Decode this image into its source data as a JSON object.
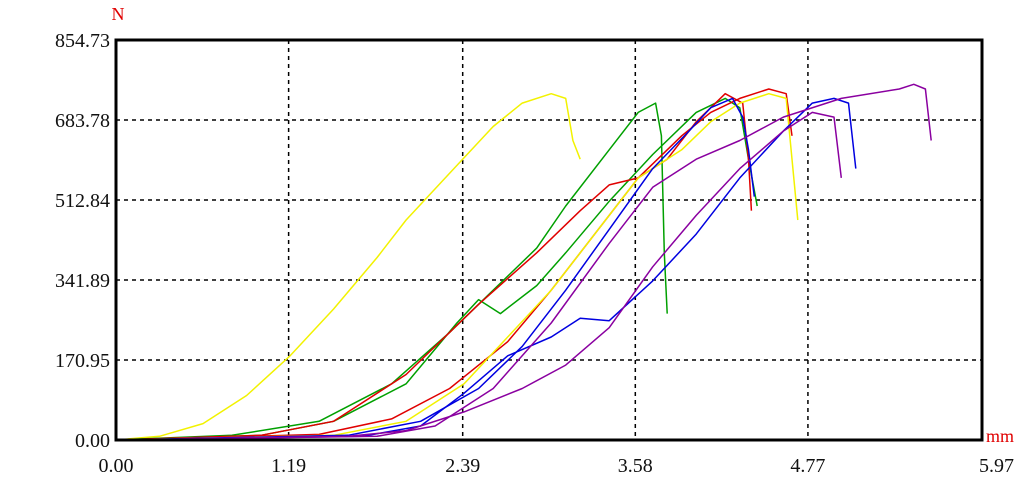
{
  "chart_data": {
    "type": "line",
    "ylabel": "N",
    "xlabel": "mm",
    "xlim": [
      0,
      5.97
    ],
    "ylim": [
      0,
      854.73
    ],
    "xticks": [
      "0.00",
      "1.19",
      "2.39",
      "3.58",
      "4.77",
      "5.97"
    ],
    "yticks": [
      "0.00",
      "170.95",
      "341.89",
      "512.84",
      "683.78",
      "854.73"
    ],
    "grid": "dashed",
    "legend": "none",
    "series": [
      {
        "color": "#f2f200",
        "points": [
          [
            0.0,
            0
          ],
          [
            0.3,
            8
          ],
          [
            0.6,
            35
          ],
          [
            0.9,
            95
          ],
          [
            1.2,
            180
          ],
          [
            1.5,
            280
          ],
          [
            1.8,
            390
          ],
          [
            2.0,
            470
          ],
          [
            2.3,
            570
          ],
          [
            2.6,
            670
          ],
          [
            2.8,
            720
          ],
          [
            3.0,
            740
          ],
          [
            3.1,
            730
          ],
          [
            3.15,
            640
          ],
          [
            3.2,
            600
          ]
        ]
      },
      {
        "color": "#00a000",
        "points": [
          [
            0.0,
            0
          ],
          [
            0.8,
            10
          ],
          [
            1.4,
            40
          ],
          [
            1.9,
            120
          ],
          [
            2.3,
            230
          ],
          [
            2.6,
            320
          ],
          [
            2.9,
            410
          ],
          [
            3.1,
            500
          ],
          [
            3.4,
            620
          ],
          [
            3.6,
            700
          ],
          [
            3.72,
            720
          ],
          [
            3.76,
            650
          ],
          [
            3.78,
            400
          ],
          [
            3.8,
            270
          ]
        ]
      },
      {
        "color": "#00a000",
        "points": [
          [
            0.0,
            0
          ],
          [
            1.0,
            10
          ],
          [
            1.5,
            40
          ],
          [
            2.0,
            120
          ],
          [
            2.35,
            250
          ],
          [
            2.5,
            300
          ],
          [
            2.65,
            270
          ],
          [
            2.9,
            330
          ],
          [
            3.1,
            400
          ],
          [
            3.4,
            510
          ],
          [
            3.7,
            610
          ],
          [
            4.0,
            700
          ],
          [
            4.2,
            730
          ],
          [
            4.3,
            710
          ],
          [
            4.36,
            600
          ],
          [
            4.42,
            500
          ]
        ]
      },
      {
        "color": "#e00000",
        "points": [
          [
            0.0,
            0
          ],
          [
            1.0,
            10
          ],
          [
            1.5,
            40
          ],
          [
            2.0,
            140
          ],
          [
            2.5,
            290
          ],
          [
            2.9,
            400
          ],
          [
            3.2,
            490
          ],
          [
            3.4,
            545
          ],
          [
            3.6,
            560
          ],
          [
            3.8,
            600
          ],
          [
            4.0,
            680
          ],
          [
            4.2,
            740
          ],
          [
            4.32,
            720
          ],
          [
            4.36,
            600
          ],
          [
            4.38,
            490
          ]
        ]
      },
      {
        "color": "#e00000",
        "points": [
          [
            0.0,
            0
          ],
          [
            1.4,
            12
          ],
          [
            1.9,
            45
          ],
          [
            2.3,
            110
          ],
          [
            2.7,
            210
          ],
          [
            3.0,
            320
          ],
          [
            3.3,
            440
          ],
          [
            3.6,
            560
          ],
          [
            3.9,
            650
          ],
          [
            4.1,
            700
          ],
          [
            4.3,
            730
          ],
          [
            4.5,
            750
          ],
          [
            4.62,
            740
          ],
          [
            4.66,
            650
          ]
        ]
      },
      {
        "color": "#f2f200",
        "points": [
          [
            0.0,
            0
          ],
          [
            1.5,
            10
          ],
          [
            2.0,
            40
          ],
          [
            2.4,
            120
          ],
          [
            2.7,
            220
          ],
          [
            3.0,
            320
          ],
          [
            3.3,
            440
          ],
          [
            3.6,
            560
          ],
          [
            3.9,
            620
          ],
          [
            4.1,
            680
          ],
          [
            4.3,
            720
          ],
          [
            4.5,
            740
          ],
          [
            4.62,
            730
          ],
          [
            4.66,
            600
          ],
          [
            4.7,
            470
          ]
        ]
      },
      {
        "color": "#0000e0",
        "points": [
          [
            0.0,
            0
          ],
          [
            1.6,
            10
          ],
          [
            2.1,
            40
          ],
          [
            2.5,
            110
          ],
          [
            2.8,
            200
          ],
          [
            3.1,
            320
          ],
          [
            3.4,
            450
          ],
          [
            3.7,
            580
          ],
          [
            3.95,
            660
          ],
          [
            4.1,
            710
          ],
          [
            4.25,
            730
          ],
          [
            4.32,
            690
          ],
          [
            4.36,
            620
          ],
          [
            4.4,
            520
          ]
        ]
      },
      {
        "color": "#0000e0",
        "points": [
          [
            0.0,
            0
          ],
          [
            1.7,
            8
          ],
          [
            2.1,
            30
          ],
          [
            2.4,
            100
          ],
          [
            2.7,
            180
          ],
          [
            3.0,
            220
          ],
          [
            3.2,
            260
          ],
          [
            3.4,
            255
          ],
          [
            3.7,
            340
          ],
          [
            4.0,
            440
          ],
          [
            4.3,
            560
          ],
          [
            4.6,
            660
          ],
          [
            4.8,
            720
          ],
          [
            4.95,
            730
          ],
          [
            5.05,
            720
          ],
          [
            5.1,
            580
          ]
        ]
      },
      {
        "color": "#8a00a0",
        "points": [
          [
            0.0,
            0
          ],
          [
            1.6,
            8
          ],
          [
            2.0,
            20
          ],
          [
            2.4,
            60
          ],
          [
            2.8,
            110
          ],
          [
            3.1,
            160
          ],
          [
            3.4,
            240
          ],
          [
            3.7,
            370
          ],
          [
            4.0,
            480
          ],
          [
            4.3,
            580
          ],
          [
            4.6,
            660
          ],
          [
            4.8,
            700
          ],
          [
            4.95,
            690
          ],
          [
            5.0,
            560
          ]
        ]
      },
      {
        "color": "#8a00a0",
        "points": [
          [
            0.0,
            0
          ],
          [
            1.8,
            8
          ],
          [
            2.2,
            30
          ],
          [
            2.6,
            110
          ],
          [
            3.0,
            250
          ],
          [
            3.4,
            420
          ],
          [
            3.7,
            540
          ],
          [
            4.0,
            600
          ],
          [
            4.3,
            640
          ],
          [
            4.6,
            690
          ],
          [
            5.0,
            730
          ],
          [
            5.4,
            750
          ],
          [
            5.5,
            760
          ],
          [
            5.58,
            750
          ],
          [
            5.62,
            640
          ]
        ]
      }
    ]
  }
}
